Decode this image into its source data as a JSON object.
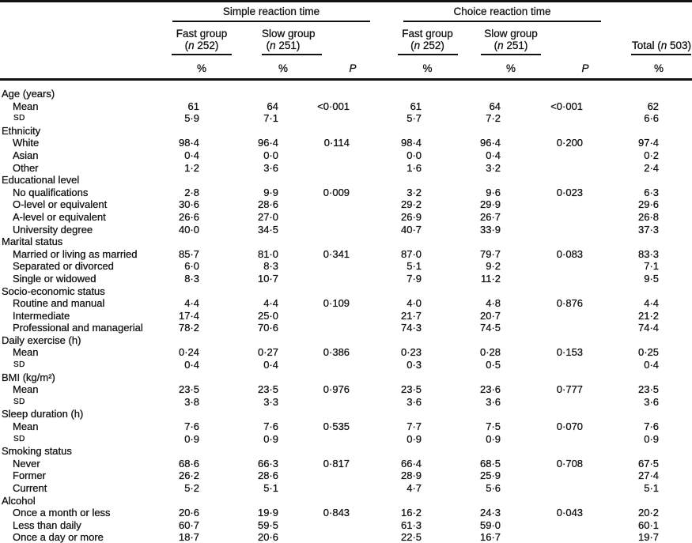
{
  "header": {
    "spanners": [
      {
        "label": "Simple reaction time"
      },
      {
        "label": "Choice reaction time"
      }
    ],
    "groups": [
      {
        "name": "Fast group",
        "n_parts": [
          "(",
          "n",
          " 252)"
        ]
      },
      {
        "name": "Slow group",
        "n_parts": [
          "(",
          "n",
          " 251)"
        ]
      },
      {
        "name": "Fast group",
        "n_parts": [
          "(",
          "n",
          " 252)"
        ]
      },
      {
        "name": "Slow group",
        "n_parts": [
          "(",
          "n",
          " 251)"
        ]
      }
    ],
    "total": {
      "parts": [
        "Total (",
        "n",
        " 503)"
      ]
    },
    "units": {
      "percent": "%",
      "p": "P"
    }
  },
  "rows": [
    {
      "type": "section",
      "label": "Age (years)"
    },
    {
      "type": "item",
      "label": "Mean",
      "cells": [
        "61",
        "64",
        "<0·001",
        "61",
        "64",
        "<0·001",
        "62"
      ]
    },
    {
      "type": "sd",
      "label": "SD",
      "cells": [
        "5·9",
        "7·1",
        "",
        "5·7",
        "7·2",
        "",
        "6·6"
      ]
    },
    {
      "type": "section",
      "label": "Ethnicity"
    },
    {
      "type": "item",
      "label": "White",
      "cells": [
        "98·4",
        "96·4",
        "0·114",
        "98·4",
        "96·4",
        "0·200",
        "97·4"
      ]
    },
    {
      "type": "item",
      "label": "Asian",
      "cells": [
        "0·4",
        "0·0",
        "",
        "0·0",
        "0·4",
        "",
        "0·2"
      ]
    },
    {
      "type": "item",
      "label": "Other",
      "cells": [
        "1·2",
        "3·6",
        "",
        "1·6",
        "3·2",
        "",
        "2·4"
      ]
    },
    {
      "type": "section",
      "label": "Educational level"
    },
    {
      "type": "item",
      "label": "No qualifications",
      "cells": [
        "2·8",
        "9·9",
        "0·009",
        "3·2",
        "9·6",
        "0·023",
        "6·3"
      ]
    },
    {
      "type": "item",
      "label": "O-level or equivalent",
      "cells": [
        "30·6",
        "28·6",
        "",
        "29·2",
        "29·9",
        "",
        "29·6"
      ]
    },
    {
      "type": "item",
      "label": "A-level or equivalent",
      "cells": [
        "26·6",
        "27·0",
        "",
        "26·9",
        "26·7",
        "",
        "26·8"
      ]
    },
    {
      "type": "item",
      "label": "University degree",
      "cells": [
        "40·0",
        "34·5",
        "",
        "40·7",
        "33·9",
        "",
        "37·3"
      ]
    },
    {
      "type": "section",
      "label": "Marital status"
    },
    {
      "type": "item",
      "label": "Married or living as married",
      "cells": [
        "85·7",
        "81·0",
        "0·341",
        "87·0",
        "79·7",
        "0·083",
        "83·3"
      ]
    },
    {
      "type": "item",
      "label": "Separated or divorced",
      "cells": [
        "6·0",
        "8·3",
        "",
        "5·1",
        "9·2",
        "",
        "7·1"
      ]
    },
    {
      "type": "item",
      "label": "Single or widowed",
      "cells": [
        "8·3",
        "10·7",
        "",
        "7·9",
        "11·2",
        "",
        "9·5"
      ]
    },
    {
      "type": "section",
      "label": "Socio-economic status"
    },
    {
      "type": "item",
      "label": "Routine and manual",
      "cells": [
        "4·4",
        "4·4",
        "0·109",
        "4·0",
        "4·8",
        "0·876",
        "4·4"
      ]
    },
    {
      "type": "item",
      "label": "Intermediate",
      "cells": [
        "17·4",
        "25·0",
        "",
        "21·7",
        "20·7",
        "",
        "21·2"
      ]
    },
    {
      "type": "item",
      "label": "Professional and managerial",
      "cells": [
        "78·2",
        "70·6",
        "",
        "74·3",
        "74·5",
        "",
        "74·4"
      ]
    },
    {
      "type": "section",
      "label": "Daily exercise (h)"
    },
    {
      "type": "item",
      "label": "Mean",
      "cells": [
        "0·24",
        "0·27",
        "0·386",
        "0·23",
        "0·28",
        "0·153",
        "0·25"
      ]
    },
    {
      "type": "sd",
      "label": "SD",
      "cells": [
        "0·4",
        "0·4",
        "",
        "0·3",
        "0·5",
        "",
        "0·4"
      ]
    },
    {
      "type": "section",
      "label": "BMI (kg/m²)"
    },
    {
      "type": "item",
      "label": "Mean",
      "cells": [
        "23·5",
        "23·5",
        "0·976",
        "23·5",
        "23·6",
        "0·777",
        "23·5"
      ]
    },
    {
      "type": "sd",
      "label": "SD",
      "cells": [
        "3·8",
        "3·3",
        "",
        "3·6",
        "3·6",
        "",
        "3·6"
      ]
    },
    {
      "type": "section",
      "label": "Sleep duration (h)"
    },
    {
      "type": "item",
      "label": "Mean",
      "cells": [
        "7·6",
        "7·6",
        "0·535",
        "7·7",
        "7·5",
        "0·070",
        "7·6"
      ]
    },
    {
      "type": "sd",
      "label": "SD",
      "cells": [
        "0·9",
        "0·9",
        "",
        "0·9",
        "0·9",
        "",
        "0·9"
      ]
    },
    {
      "type": "section",
      "label": "Smoking status"
    },
    {
      "type": "item",
      "label": "Never",
      "cells": [
        "68·6",
        "66·3",
        "0·817",
        "66·4",
        "68·5",
        "0·708",
        "67·5"
      ]
    },
    {
      "type": "item",
      "label": "Former",
      "cells": [
        "26·2",
        "28·6",
        "",
        "28·9",
        "25·9",
        "",
        "27·4"
      ]
    },
    {
      "type": "item",
      "label": "Current",
      "cells": [
        "5·2",
        "5·1",
        "",
        "4·7",
        "5·6",
        "",
        "5·1"
      ]
    },
    {
      "type": "section",
      "label": "Alcohol"
    },
    {
      "type": "item",
      "label": "Once a month or less",
      "cells": [
        "20·6",
        "19·9",
        "0·843",
        "16·2",
        "24·3",
        "0·043",
        "20·2"
      ]
    },
    {
      "type": "item",
      "label": "Less than daily",
      "cells": [
        "60·7",
        "59·5",
        "",
        "61·3",
        "59·0",
        "",
        "60·1"
      ]
    },
    {
      "type": "item",
      "label": "Once a day or more",
      "cells": [
        "18·7",
        "20·6",
        "",
        "22·5",
        "16·7",
        "",
        "19·7"
      ]
    }
  ]
}
